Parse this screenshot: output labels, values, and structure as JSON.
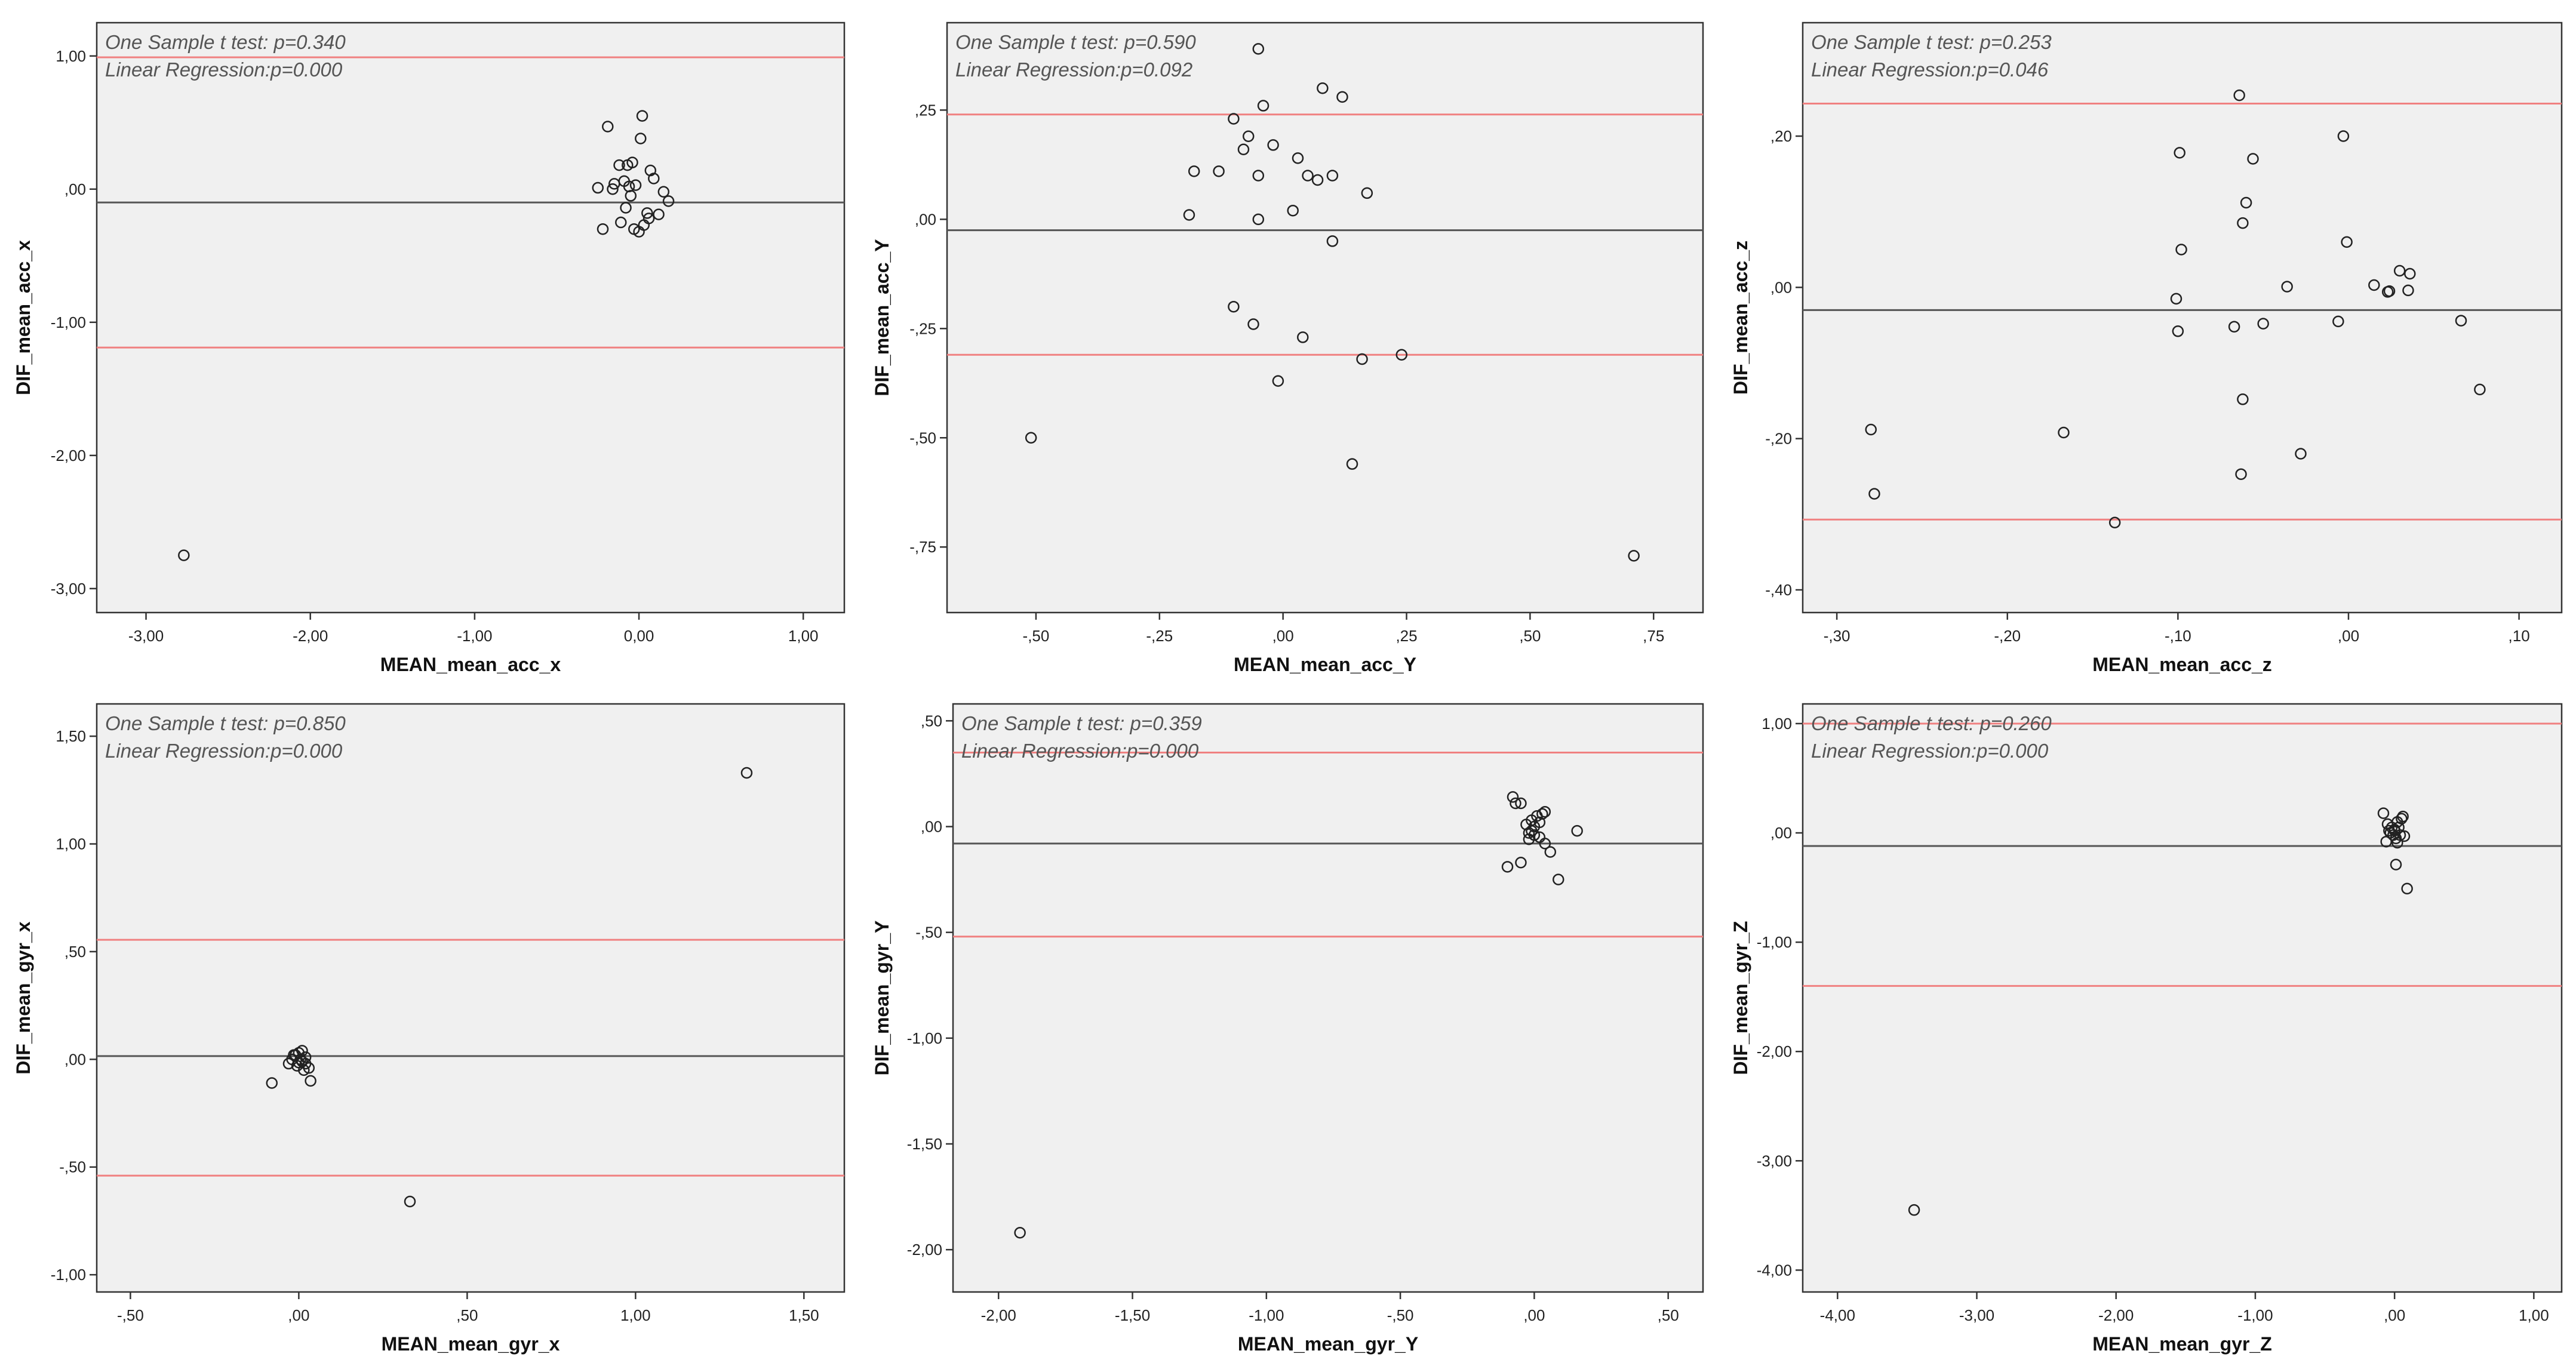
{
  "colors": {
    "plot_background": "#f0f0f0",
    "limit_line": "#f08080",
    "mean_line": "#555555",
    "marker": "#222222"
  },
  "chart_data": [
    {
      "type": "scatter",
      "xlabel": "MEAN_mean_acc_x",
      "ylabel": "DIF_mean_acc_x",
      "annotations": [
        "One Sample t test: p=0.340",
        "Linear Regression:p=0.000"
      ],
      "xlim": [
        -3.3,
        1.25
      ],
      "ylim": [
        -3.18,
        1.25
      ],
      "xticks": [
        -3,
        -2,
        -1,
        0,
        1
      ],
      "xtick_labels": [
        "-3,00",
        "-2,00",
        "-1,00",
        "0,00",
        "1,00"
      ],
      "yticks": [
        1,
        0,
        -1,
        -2,
        -3
      ],
      "ytick_labels": [
        "1,00",
        ",00",
        "-1,00",
        "-2,00",
        "-3,00"
      ],
      "mean_line": -0.1,
      "limits": [
        0.99,
        -1.19
      ],
      "points": [
        [
          -2.77,
          -2.75
        ],
        [
          -0.25,
          0.01
        ],
        [
          -0.22,
          -0.3
        ],
        [
          -0.19,
          0.47
        ],
        [
          -0.16,
          0.0
        ],
        [
          -0.15,
          0.04
        ],
        [
          -0.12,
          0.18
        ],
        [
          -0.11,
          -0.25
        ],
        [
          -0.09,
          0.06
        ],
        [
          -0.08,
          -0.14
        ],
        [
          -0.07,
          0.18
        ],
        [
          -0.06,
          0.02
        ],
        [
          -0.05,
          -0.05
        ],
        [
          -0.04,
          0.2
        ],
        [
          -0.03,
          -0.3
        ],
        [
          -0.02,
          0.03
        ],
        [
          0.0,
          -0.32
        ],
        [
          0.01,
          0.38
        ],
        [
          0.02,
          0.55
        ],
        [
          0.03,
          -0.27
        ],
        [
          0.05,
          -0.18
        ],
        [
          0.06,
          -0.22
        ],
        [
          0.07,
          0.14
        ],
        [
          0.09,
          0.08
        ],
        [
          0.12,
          -0.19
        ],
        [
          0.15,
          -0.02
        ],
        [
          0.18,
          -0.09
        ]
      ]
    },
    {
      "type": "scatter",
      "xlabel": "MEAN_mean_acc_Y",
      "ylabel": "DIF_mean_acc_Y",
      "annotations": [
        "One Sample t test: p=0.590",
        "Linear Regression:p=0.092"
      ],
      "xlim": [
        -0.68,
        0.85
      ],
      "ylim": [
        -0.9,
        0.45
      ],
      "xticks": [
        -0.5,
        -0.25,
        0,
        0.25,
        0.5,
        0.75
      ],
      "xtick_labels": [
        "-,50",
        "-,25",
        ",00",
        ",25",
        ",50",
        ",75"
      ],
      "yticks": [
        0.25,
        0,
        -0.25,
        -0.5,
        -0.75
      ],
      "ytick_labels": [
        ",25",
        ",00",
        "-,25",
        "-,50",
        "-,75"
      ],
      "mean_line": -0.025,
      "limits": [
        0.24,
        -0.31
      ],
      "points": [
        [
          -0.51,
          -0.5
        ],
        [
          -0.19,
          0.01
        ],
        [
          -0.18,
          0.11
        ],
        [
          -0.13,
          0.11
        ],
        [
          -0.1,
          0.23
        ],
        [
          -0.1,
          -0.2
        ],
        [
          -0.08,
          0.16
        ],
        [
          -0.07,
          0.19
        ],
        [
          -0.06,
          -0.24
        ],
        [
          -0.05,
          0.39
        ],
        [
          -0.05,
          0.0
        ],
        [
          -0.05,
          0.1
        ],
        [
          -0.04,
          0.26
        ],
        [
          -0.02,
          0.17
        ],
        [
          -0.01,
          -0.37
        ],
        [
          0.02,
          0.02
        ],
        [
          0.03,
          0.14
        ],
        [
          0.04,
          -0.27
        ],
        [
          0.05,
          0.1
        ],
        [
          0.07,
          0.09
        ],
        [
          0.08,
          0.3
        ],
        [
          0.1,
          0.1
        ],
        [
          0.1,
          -0.05
        ],
        [
          0.12,
          0.28
        ],
        [
          0.14,
          -0.56
        ],
        [
          0.16,
          -0.32
        ],
        [
          0.17,
          0.06
        ],
        [
          0.24,
          -0.31
        ],
        [
          0.71,
          -0.77
        ]
      ]
    },
    {
      "type": "scatter",
      "xlabel": "MEAN_mean_acc_z",
      "ylabel": "DIF_mean_acc_z",
      "annotations": [
        "One Sample t test: p=0.253",
        "Linear Regression:p=0.046"
      ],
      "xlim": [
        -0.32,
        0.125
      ],
      "ylim": [
        -0.43,
        0.35
      ],
      "xticks": [
        -0.3,
        -0.2,
        -0.1,
        0,
        0.1
      ],
      "xtick_labels": [
        "-,30",
        "-,20",
        "-,10",
        ",00",
        ",10"
      ],
      "yticks": [
        0.2,
        0,
        -0.2,
        -0.4
      ],
      "ytick_labels": [
        ",20",
        ",00",
        "-,20",
        "-,40"
      ],
      "mean_line": -0.03,
      "limits": [
        0.243,
        -0.307
      ],
      "points": [
        [
          -0.28,
          -0.188
        ],
        [
          -0.278,
          -0.273
        ],
        [
          -0.167,
          -0.192
        ],
        [
          -0.137,
          -0.311
        ],
        [
          -0.101,
          -0.015
        ],
        [
          -0.1,
          -0.058
        ],
        [
          -0.099,
          0.178
        ],
        [
          -0.098,
          0.05
        ],
        [
          -0.067,
          -0.052
        ],
        [
          -0.064,
          0.254
        ],
        [
          -0.063,
          -0.247
        ],
        [
          -0.062,
          -0.148
        ],
        [
          -0.062,
          0.085
        ],
        [
          -0.06,
          0.112
        ],
        [
          -0.056,
          0.17
        ],
        [
          -0.05,
          -0.048
        ],
        [
          -0.036,
          0.001
        ],
        [
          -0.028,
          -0.22
        ],
        [
          -0.006,
          -0.045
        ],
        [
          -0.003,
          0.2
        ],
        [
          -0.001,
          0.06
        ],
        [
          0.015,
          0.003
        ],
        [
          0.023,
          -0.006
        ],
        [
          0.024,
          -0.005
        ],
        [
          0.03,
          0.022
        ],
        [
          0.035,
          -0.004
        ],
        [
          0.036,
          0.018
        ],
        [
          0.066,
          -0.044
        ],
        [
          0.077,
          -0.135
        ]
      ]
    },
    {
      "type": "scatter",
      "xlabel": "MEAN_mean_gyr_x",
      "ylabel": "DIF_mean_gyr_x",
      "annotations": [
        "One Sample t test: p=0.850",
        "Linear Regression:p=0.000"
      ],
      "xlim": [
        -0.6,
        1.62
      ],
      "ylim": [
        -1.08,
        1.65
      ],
      "xticks": [
        -0.5,
        0,
        0.5,
        1,
        1.5
      ],
      "xtick_labels": [
        "-,50",
        ",00",
        ",50",
        "1,00",
        "1,50"
      ],
      "yticks": [
        1.5,
        1,
        0.5,
        0,
        -0.5,
        -1
      ],
      "ytick_labels": [
        "1,50",
        "1,00",
        ",50",
        ",00",
        "-,50",
        "-1,00"
      ],
      "mean_line": 0.015,
      "limits": [
        0.555,
        -0.54
      ],
      "points": [
        [
          1.33,
          1.33
        ],
        [
          0.33,
          -0.66
        ],
        [
          -0.08,
          -0.11
        ],
        [
          -0.03,
          -0.02
        ],
        [
          -0.02,
          0.0
        ],
        [
          -0.01,
          0.02
        ],
        [
          -0.005,
          -0.03
        ],
        [
          0.0,
          0.03
        ],
        [
          0.005,
          0.0
        ],
        [
          0.01,
          -0.01
        ],
        [
          0.01,
          0.04
        ],
        [
          0.015,
          -0.05
        ],
        [
          0.02,
          0.01
        ],
        [
          0.02,
          -0.02
        ],
        [
          0.03,
          -0.04
        ],
        [
          0.035,
          -0.1
        ],
        [
          -0.015,
          0.02
        ],
        [
          0.0,
          -0.015
        ]
      ]
    },
    {
      "type": "scatter",
      "xlabel": "MEAN_mean_gyr_Y",
      "ylabel": "DIF_mean_gyr_Y",
      "annotations": [
        "One Sample t test: p=0.359",
        "Linear Regression:p=0.000"
      ],
      "xlim": [
        -2.17,
        0.63
      ],
      "ylim": [
        -2.2,
        0.58
      ],
      "xticks": [
        -2,
        -1.5,
        -1,
        -0.5,
        0,
        0.5
      ],
      "xtick_labels": [
        "-2,00",
        "-1,50",
        "-1,00",
        "-,50",
        ",00",
        ",50"
      ],
      "yticks": [
        0.5,
        0,
        -0.5,
        -1,
        -1.5,
        -2
      ],
      "ytick_labels": [
        ",50",
        ",00",
        "-,50",
        "-1,00",
        "-1,50",
        "-2,00"
      ],
      "mean_line": -0.08,
      "limits": [
        0.35,
        -0.52
      ],
      "points": [
        [
          -1.92,
          -1.92
        ],
        [
          -0.1,
          -0.19
        ],
        [
          -0.08,
          0.14
        ],
        [
          -0.07,
          0.11
        ],
        [
          -0.05,
          0.11
        ],
        [
          -0.05,
          -0.17
        ],
        [
          -0.03,
          0.01
        ],
        [
          -0.02,
          -0.03
        ],
        [
          -0.02,
          -0.06
        ],
        [
          -0.01,
          0.03
        ],
        [
          0.0,
          0.0
        ],
        [
          0.0,
          -0.04
        ],
        [
          0.01,
          0.05
        ],
        [
          0.02,
          0.02
        ],
        [
          0.02,
          -0.05
        ],
        [
          0.03,
          0.06
        ],
        [
          0.04,
          0.07
        ],
        [
          0.04,
          -0.08
        ],
        [
          0.06,
          -0.12
        ],
        [
          0.09,
          -0.25
        ],
        [
          0.16,
          -0.02
        ],
        [
          -0.01,
          -0.02
        ]
      ]
    },
    {
      "type": "scatter",
      "xlabel": "MEAN_mean_gyr_Z",
      "ylabel": "DIF_mean_gyr_Z",
      "annotations": [
        "One Sample t test: p=0.260",
        "Linear Regression:p=0.000"
      ],
      "xlim": [
        -4.25,
        1.2
      ],
      "ylim": [
        -4.2,
        1.18
      ],
      "xticks": [
        -4,
        -3,
        -2,
        -1,
        0,
        1
      ],
      "xtick_labels": [
        "-4,00",
        "-3,00",
        "-2,00",
        "-1,00",
        ",00",
        "1,00"
      ],
      "yticks": [
        1,
        0,
        -1,
        -2,
        -3,
        -4
      ],
      "ytick_labels": [
        "1,00",
        ",00",
        "-1,00",
        "-2,00",
        "-3,00",
        "-4,00"
      ],
      "mean_line": -0.12,
      "limits": [
        1.0,
        -1.4
      ],
      "points": [
        [
          -3.45,
          -3.45
        ],
        [
          -0.08,
          0.18
        ],
        [
          -0.06,
          -0.08
        ],
        [
          -0.05,
          0.08
        ],
        [
          -0.04,
          0.02
        ],
        [
          -0.03,
          0.0
        ],
        [
          -0.02,
          0.05
        ],
        [
          -0.01,
          -0.02
        ],
        [
          0.0,
          0.03
        ],
        [
          0.01,
          -0.05
        ],
        [
          0.02,
          0.1
        ],
        [
          0.02,
          -0.09
        ],
        [
          0.03,
          0.05
        ],
        [
          0.04,
          -0.02
        ],
        [
          0.05,
          0.13
        ],
        [
          0.06,
          0.15
        ],
        [
          0.07,
          -0.03
        ],
        [
          0.09,
          -0.51
        ],
        [
          0.01,
          -0.29
        ],
        [
          0.0,
          0.02
        ]
      ]
    }
  ]
}
